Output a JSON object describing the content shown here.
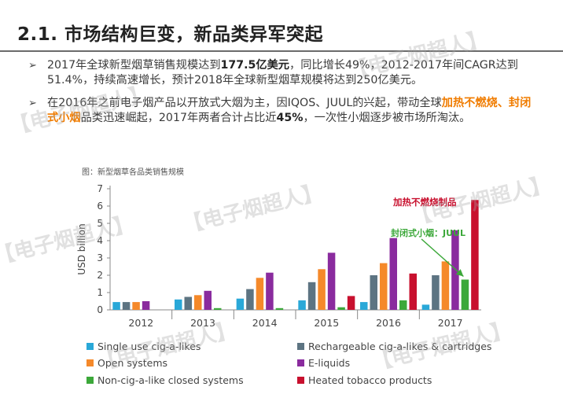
{
  "header": {
    "title": "2.1. 市场结构巨变，新品类异军突起"
  },
  "bullets": [
    {
      "p1": "2017年全球新型烟草销售规模达到",
      "b1": "177.5亿美元",
      "p2": "，同比增长49%，2012-2017年间CAGR达到51.4%，持续高速增长，预计2018年全球新型烟草规模将达到250亿美元。"
    },
    {
      "p1": "在2016年之前电子烟产品以开放式大烟为主，因IQOS、JUUL的兴起，带动全球",
      "hl": "加热不燃烧、封闭式小烟",
      "p2": "品类迅速崛起，2017年两者合计占比近",
      "b1": "45%",
      "p3": "，一次性小烟逐步被市场所淘汰。"
    }
  ],
  "chart_caption": "图：新型烟草各品类销售规模",
  "watermark_text": "【电子烟超人】",
  "chart_data": {
    "type": "bar",
    "ylabel": "USD billion",
    "ylim": [
      0,
      7
    ],
    "yticks": [
      0,
      1,
      2,
      3,
      4,
      5,
      6,
      7
    ],
    "categories": [
      "2012",
      "2013",
      "2014",
      "2015",
      "2016",
      "2017"
    ],
    "series": [
      {
        "name": "Single use cig-a-likes",
        "color": "#29a8d8",
        "values": [
          0.45,
          0.6,
          0.65,
          0.55,
          0.45,
          0.3
        ]
      },
      {
        "name": "Rechargeable cig-a-likes & cartridges",
        "color": "#5d7482",
        "values": [
          0.45,
          0.75,
          1.2,
          1.6,
          2.0,
          2.0
        ]
      },
      {
        "name": "Open systems",
        "color": "#f5892a",
        "values": [
          0.45,
          0.85,
          1.85,
          2.35,
          2.7,
          2.8
        ]
      },
      {
        "name": "E-liquids",
        "color": "#8a2b9e",
        "values": [
          0.5,
          1.1,
          2.15,
          3.3,
          4.15,
          4.6
        ]
      },
      {
        "name": "Non-cig-a-like closed systems",
        "color": "#3ca83a",
        "values": [
          0.0,
          0.1,
          0.1,
          0.15,
          0.55,
          1.75
        ]
      },
      {
        "name": "Heated tobacco products",
        "color": "#c8102e",
        "values": [
          0.0,
          0.0,
          0.0,
          0.8,
          2.1,
          6.35
        ]
      }
    ],
    "annotations": [
      {
        "text": "加热不燃烧制品",
        "color": "#c8102e"
      },
      {
        "text": "封闭式小烟：JUUL",
        "color": "#3ca83a"
      }
    ],
    "grid": false,
    "legend_position": "bottom"
  }
}
